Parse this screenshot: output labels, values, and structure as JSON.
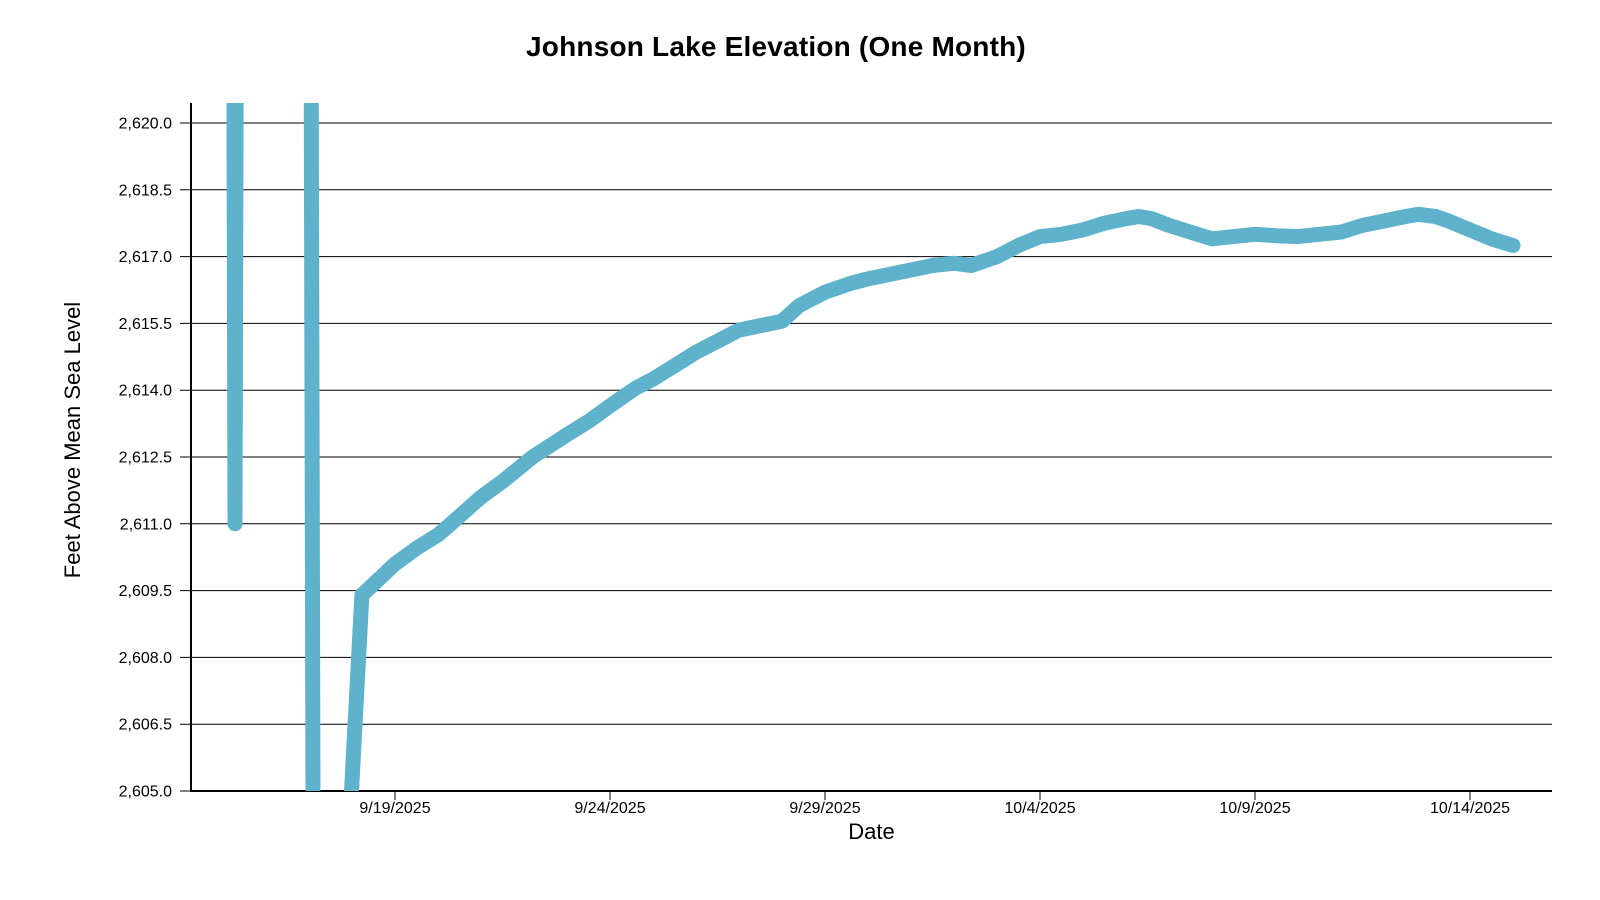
{
  "page": {
    "background_color": "#ffffff",
    "text_color": "#000000"
  },
  "chart_data": {
    "type": "line",
    "title": "Johnson Lake Elevation (One Month)",
    "xlabel": "Date",
    "ylabel": "Feet Above Mean Sea Level",
    "legend": "none",
    "grid": "horizontal",
    "ylim": [
      2605.0,
      2620.0
    ],
    "y_tick_step": 1.5,
    "y_ticks": [
      {
        "value": 2620.0,
        "label": "2,620.0"
      },
      {
        "value": 2618.5,
        "label": "2,618.5"
      },
      {
        "value": 2617.0,
        "label": "2,617.0"
      },
      {
        "value": 2615.5,
        "label": "2,615.5"
      },
      {
        "value": 2614.0,
        "label": "2,614.0"
      },
      {
        "value": 2612.5,
        "label": "2,612.5"
      },
      {
        "value": 2611.0,
        "label": "2,611.0"
      },
      {
        "value": 2609.5,
        "label": "2,609.5"
      },
      {
        "value": 2608.0,
        "label": "2,608.0"
      },
      {
        "value": 2606.5,
        "label": "2,606.5"
      },
      {
        "value": 2605.0,
        "label": "2,605.0"
      }
    ],
    "x_ticks": [
      {
        "label": "9/19/2025",
        "day_offset": 0
      },
      {
        "label": "9/24/2025",
        "day_offset": 5
      },
      {
        "label": "9/29/2025",
        "day_offset": 10
      },
      {
        "label": "10/4/2025",
        "day_offset": 15
      },
      {
        "label": "10/9/2025",
        "day_offset": 20
      },
      {
        "label": "10/14/2025",
        "day_offset": 25
      }
    ],
    "series": [
      {
        "name": "lake-elevation-ft",
        "color": "#5FB2CB",
        "stroke_width": 15,
        "clips_out_of_range": true,
        "note": "points are [days relative to 9/19/2025 tick, feet]; values beyond ylim are off-scale sensor spikes drawn clipped at plot edges",
        "points": [
          [
            -3.75,
            2622
          ],
          [
            -3.72,
            2611.0
          ],
          [
            -3.69,
            2622
          ],
          [
            -1.95,
            2622
          ],
          [
            -1.9,
            2602
          ],
          [
            -1.45,
            2602
          ],
          [
            -1.15,
            2602.5
          ],
          [
            -0.77,
            2609.4
          ],
          [
            0,
            2610.1
          ],
          [
            0.5,
            2610.45
          ],
          [
            1,
            2610.75
          ],
          [
            1.3,
            2611.0
          ],
          [
            2,
            2611.6
          ],
          [
            2.5,
            2611.95
          ],
          [
            3.2,
            2612.5
          ],
          [
            4,
            2613.0
          ],
          [
            4.5,
            2613.3
          ],
          [
            5,
            2613.65
          ],
          [
            5.6,
            2614.05
          ],
          [
            6,
            2614.25
          ],
          [
            6.5,
            2614.55
          ],
          [
            7,
            2614.85
          ],
          [
            7.5,
            2615.1
          ],
          [
            8,
            2615.35
          ],
          [
            8.5,
            2615.45
          ],
          [
            9,
            2615.55
          ],
          [
            9.4,
            2615.9
          ],
          [
            10,
            2616.2
          ],
          [
            10.6,
            2616.4
          ],
          [
            11,
            2616.5
          ],
          [
            11.5,
            2616.6
          ],
          [
            12,
            2616.7
          ],
          [
            12.5,
            2616.8
          ],
          [
            13,
            2616.85
          ],
          [
            13.4,
            2616.8
          ],
          [
            14,
            2617.0
          ],
          [
            14.5,
            2617.25
          ],
          [
            15,
            2617.45
          ],
          [
            15.5,
            2617.5
          ],
          [
            16,
            2617.6
          ],
          [
            16.5,
            2617.75
          ],
          [
            17,
            2617.85
          ],
          [
            17.3,
            2617.9
          ],
          [
            17.6,
            2617.85
          ],
          [
            18,
            2617.7
          ],
          [
            18.5,
            2617.55
          ],
          [
            19,
            2617.4
          ],
          [
            19.5,
            2617.45
          ],
          [
            20,
            2617.5
          ],
          [
            20.5,
            2617.47
          ],
          [
            21,
            2617.45
          ],
          [
            21.5,
            2617.5
          ],
          [
            22,
            2617.55
          ],
          [
            22.5,
            2617.7
          ],
          [
            23,
            2617.8
          ],
          [
            23.5,
            2617.9
          ],
          [
            23.8,
            2617.95
          ],
          [
            24.2,
            2617.9
          ],
          [
            24.5,
            2617.8
          ],
          [
            25,
            2617.6
          ],
          [
            25.5,
            2617.4
          ],
          [
            26,
            2617.25
          ]
        ]
      }
    ]
  }
}
